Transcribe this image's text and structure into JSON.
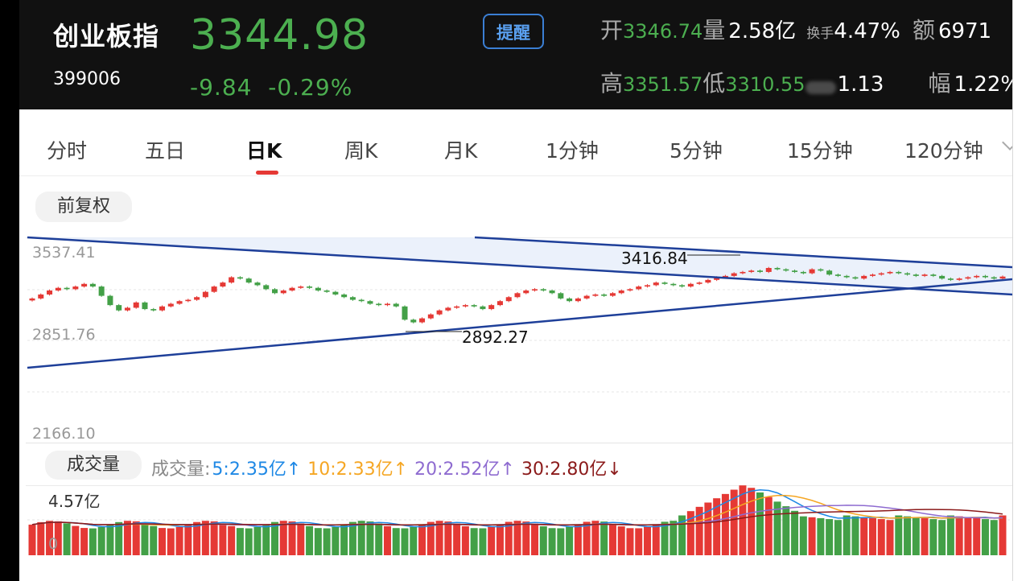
{
  "header": {
    "name": "创业板指",
    "code": "399006",
    "price": "3344.98",
    "change": "-9.84",
    "change_pct": "-0.29%",
    "alert_label": "提醒",
    "open_label": "开",
    "open": "3346.74",
    "volume_label": "量",
    "volume": "2.58亿",
    "turnover_label": "换手",
    "turnover": "4.47%",
    "amount_label": "额",
    "amount": "6971",
    "high_label": "高",
    "high": "3351.57",
    "low_label": "低",
    "low": "3310.55",
    "ratio": "1.13",
    "amplitude_label": "幅",
    "amplitude": "1.22%"
  },
  "tabs": [
    "分时",
    "五日",
    "日K",
    "周K",
    "月K",
    "1分钟",
    "5分钟",
    "15分钟",
    "120分钟"
  ],
  "active_tab": "日K",
  "adjust_label": "前复权",
  "colors": {
    "up": "#e53935",
    "down": "#43a047",
    "trend": "#1e3f99",
    "price_green": "#4caf50"
  },
  "kchart": {
    "y_labels": [
      "3537.41",
      "2851.76",
      "2166.10"
    ],
    "high_marker": "3416.84",
    "low_marker": "2892.27"
  },
  "volume": {
    "pill_label": "成交量",
    "legend_label": "成交量:",
    "ma5": "5:2.35亿",
    "ma10": "10:2.33亿",
    "ma20": "20:2.52亿",
    "ma30": "30:2.80亿",
    "max_label": "4.57亿",
    "zero_label": "0",
    "colors": {
      "ma5": "#1e88e5",
      "ma10": "#f5a623",
      "ma20": "#8e6bd0",
      "ma30": "#8b1a1a",
      "label": "#888"
    }
  },
  "chart_data": {
    "type": "candlestick",
    "title": "",
    "ylim": [
      2166.1,
      3537.41
    ],
    "series": [
      {
        "name": "日K",
        "close": [
          3180,
          3210,
          3240,
          3260,
          3250,
          3270,
          3290,
          3270,
          3200,
          3130,
          3090,
          3110,
          3150,
          3100,
          3090,
          3120,
          3140,
          3160,
          3170,
          3190,
          3230,
          3270,
          3300,
          3340,
          3330,
          3300,
          3280,
          3250,
          3220,
          3240,
          3260,
          3270,
          3260,
          3240,
          3230,
          3210,
          3190,
          3170,
          3160,
          3140,
          3130,
          3140,
          3120,
          3020,
          3000,
          3030,
          3060,
          3090,
          3110,
          3120,
          3130,
          3120,
          3100,
          3130,
          3160,
          3190,
          3220,
          3240,
          3250,
          3240,
          3220,
          3180,
          3160,
          3180,
          3200,
          3210,
          3200,
          3220,
          3240,
          3250,
          3270,
          3280,
          3300,
          3290,
          3280,
          3270,
          3290,
          3300,
          3320,
          3340,
          3350,
          3370,
          3380,
          3390,
          3380,
          3410,
          3400,
          3390,
          3380,
          3370,
          3400,
          3390,
          3360,
          3350,
          3340,
          3330,
          3350,
          3360,
          3370,
          3380,
          3370,
          3360,
          3350,
          3360,
          3350,
          3330,
          3320,
          3330,
          3340,
          3350,
          3340,
          3330,
          3345
        ]
      }
    ],
    "annotations": [
      "3416.84",
      "2892.27"
    ],
    "volume": {
      "max": "4.57亿",
      "ma": {
        "5": "2.35亿",
        "10": "2.33亿",
        "20": "2.52亿",
        "30": "2.80亿"
      }
    }
  }
}
